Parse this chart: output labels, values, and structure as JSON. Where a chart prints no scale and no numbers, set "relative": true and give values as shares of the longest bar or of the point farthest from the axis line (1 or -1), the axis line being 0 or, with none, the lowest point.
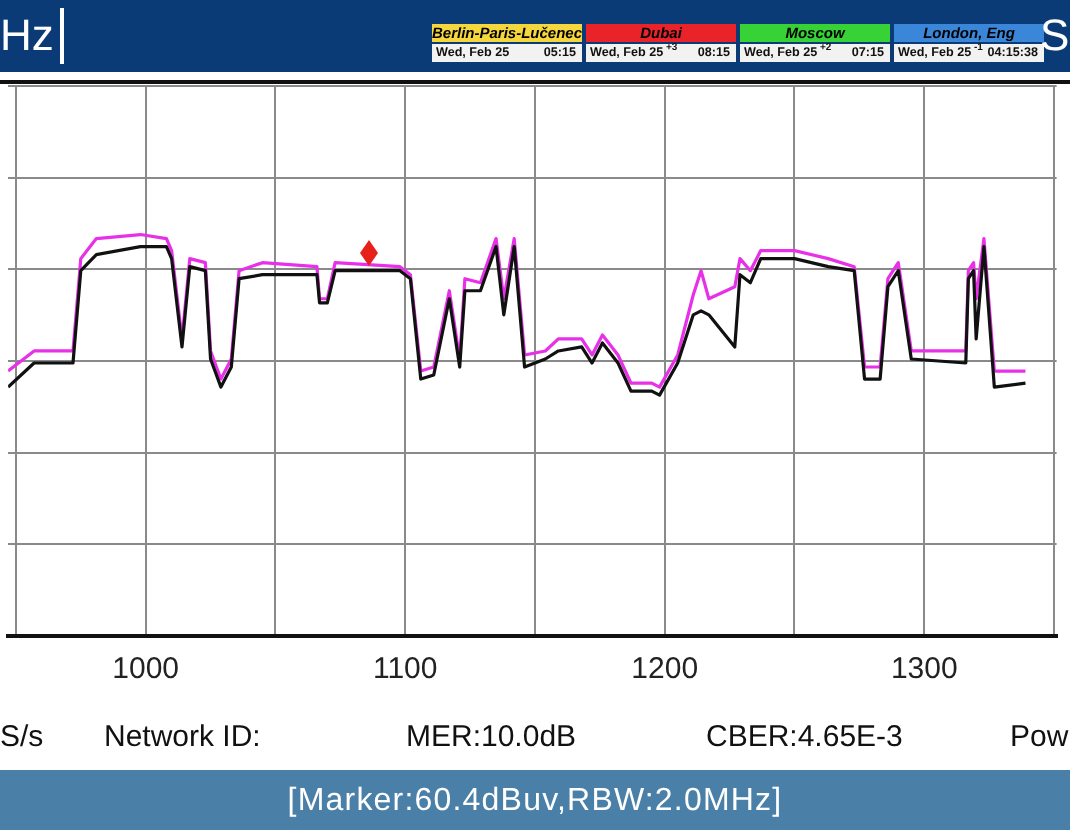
{
  "chart_data": {
    "type": "line",
    "relative": true,
    "grid": true,
    "legend": false,
    "marker": "none",
    "line_style": "solid",
    "x": [
      947,
      957,
      972,
      975,
      981,
      998,
      1008,
      1010,
      1014,
      1017,
      1023,
      1025,
      1029,
      1033,
      1036,
      1045,
      1066,
      1067,
      1070,
      1073,
      1098,
      1102,
      1106,
      1111,
      1117,
      1121,
      1123,
      1129,
      1135,
      1138,
      1142,
      1146,
      1154,
      1159,
      1168,
      1172,
      1176,
      1182,
      1187,
      1195,
      1198,
      1205,
      1211,
      1214,
      1217,
      1227,
      1229,
      1233,
      1237,
      1250,
      1263,
      1273,
      1277,
      1283,
      1286,
      1290,
      1295,
      1316,
      1317,
      1319,
      1320,
      1323,
      1327,
      1339
    ],
    "xlim": [
      947,
      1351
    ],
    "xticks": [
      {
        "value": 950,
        "label": null
      },
      1000,
      {
        "value": 1050,
        "label": null
      },
      1100,
      {
        "value": 1150,
        "label": null
      },
      1200,
      {
        "value": 1250,
        "label": null
      },
      1300,
      {
        "value": 1350,
        "label": null
      }
    ],
    "series": [
      {
        "color": "#111111",
        "values": [
          0.62,
          0.68,
          0.68,
          0.91,
          0.95,
          0.97,
          0.97,
          0.94,
          0.72,
          0.92,
          0.91,
          0.69,
          0.62,
          0.67,
          0.89,
          0.9,
          0.9,
          0.83,
          0.83,
          0.91,
          0.91,
          0.89,
          0.64,
          0.65,
          0.84,
          0.67,
          0.86,
          0.86,
          0.97,
          0.8,
          0.97,
          0.67,
          0.69,
          0.71,
          0.72,
          0.68,
          0.73,
          0.68,
          0.61,
          0.61,
          0.6,
          0.68,
          0.8,
          0.81,
          0.8,
          0.72,
          0.9,
          0.88,
          0.94,
          0.94,
          0.92,
          0.91,
          0.64,
          0.64,
          0.87,
          0.91,
          0.69,
          0.68,
          0.89,
          0.91,
          0.74,
          0.97,
          0.62,
          0.63
        ]
      },
      {
        "color": "#e830e8",
        "values": [
          0.66,
          0.71,
          0.71,
          0.94,
          0.99,
          1,
          0.99,
          0.96,
          0.74,
          0.94,
          0.93,
          0.71,
          0.64,
          0.69,
          0.91,
          0.93,
          0.92,
          0.84,
          0.84,
          0.93,
          0.92,
          0.9,
          0.66,
          0.67,
          0.86,
          0.69,
          0.89,
          0.88,
          0.99,
          0.84,
          0.99,
          0.7,
          0.71,
          0.74,
          0.74,
          0.7,
          0.75,
          0.7,
          0.63,
          0.63,
          0.62,
          0.7,
          0.85,
          0.91,
          0.84,
          0.87,
          0.94,
          0.91,
          0.96,
          0.96,
          0.94,
          0.92,
          0.67,
          0.67,
          0.89,
          0.93,
          0.71,
          0.71,
          0.91,
          0.93,
          0.84,
          0.99,
          0.66,
          0.66
        ]
      }
    ],
    "annotations": [
      "Hz",
      "Berlin-Paris-Lučenec",
      "Wed, Feb 25",
      "05:15",
      "Dubai",
      "Wed, Feb 25",
      "+3",
      "08:15",
      "Moscow",
      "Wed, Feb 25",
      "+2",
      "07:15",
      "London, Eng",
      "Wed, Feb 25",
      "-1",
      "04:15:38",
      "S",
      "S/s",
      "Network ID:",
      "MER:10.0dB",
      "CBER:4.65E-3",
      "Pow",
      "[Marker:60.4dBuv,RBW:2.0MHz]"
    ]
  }
}
